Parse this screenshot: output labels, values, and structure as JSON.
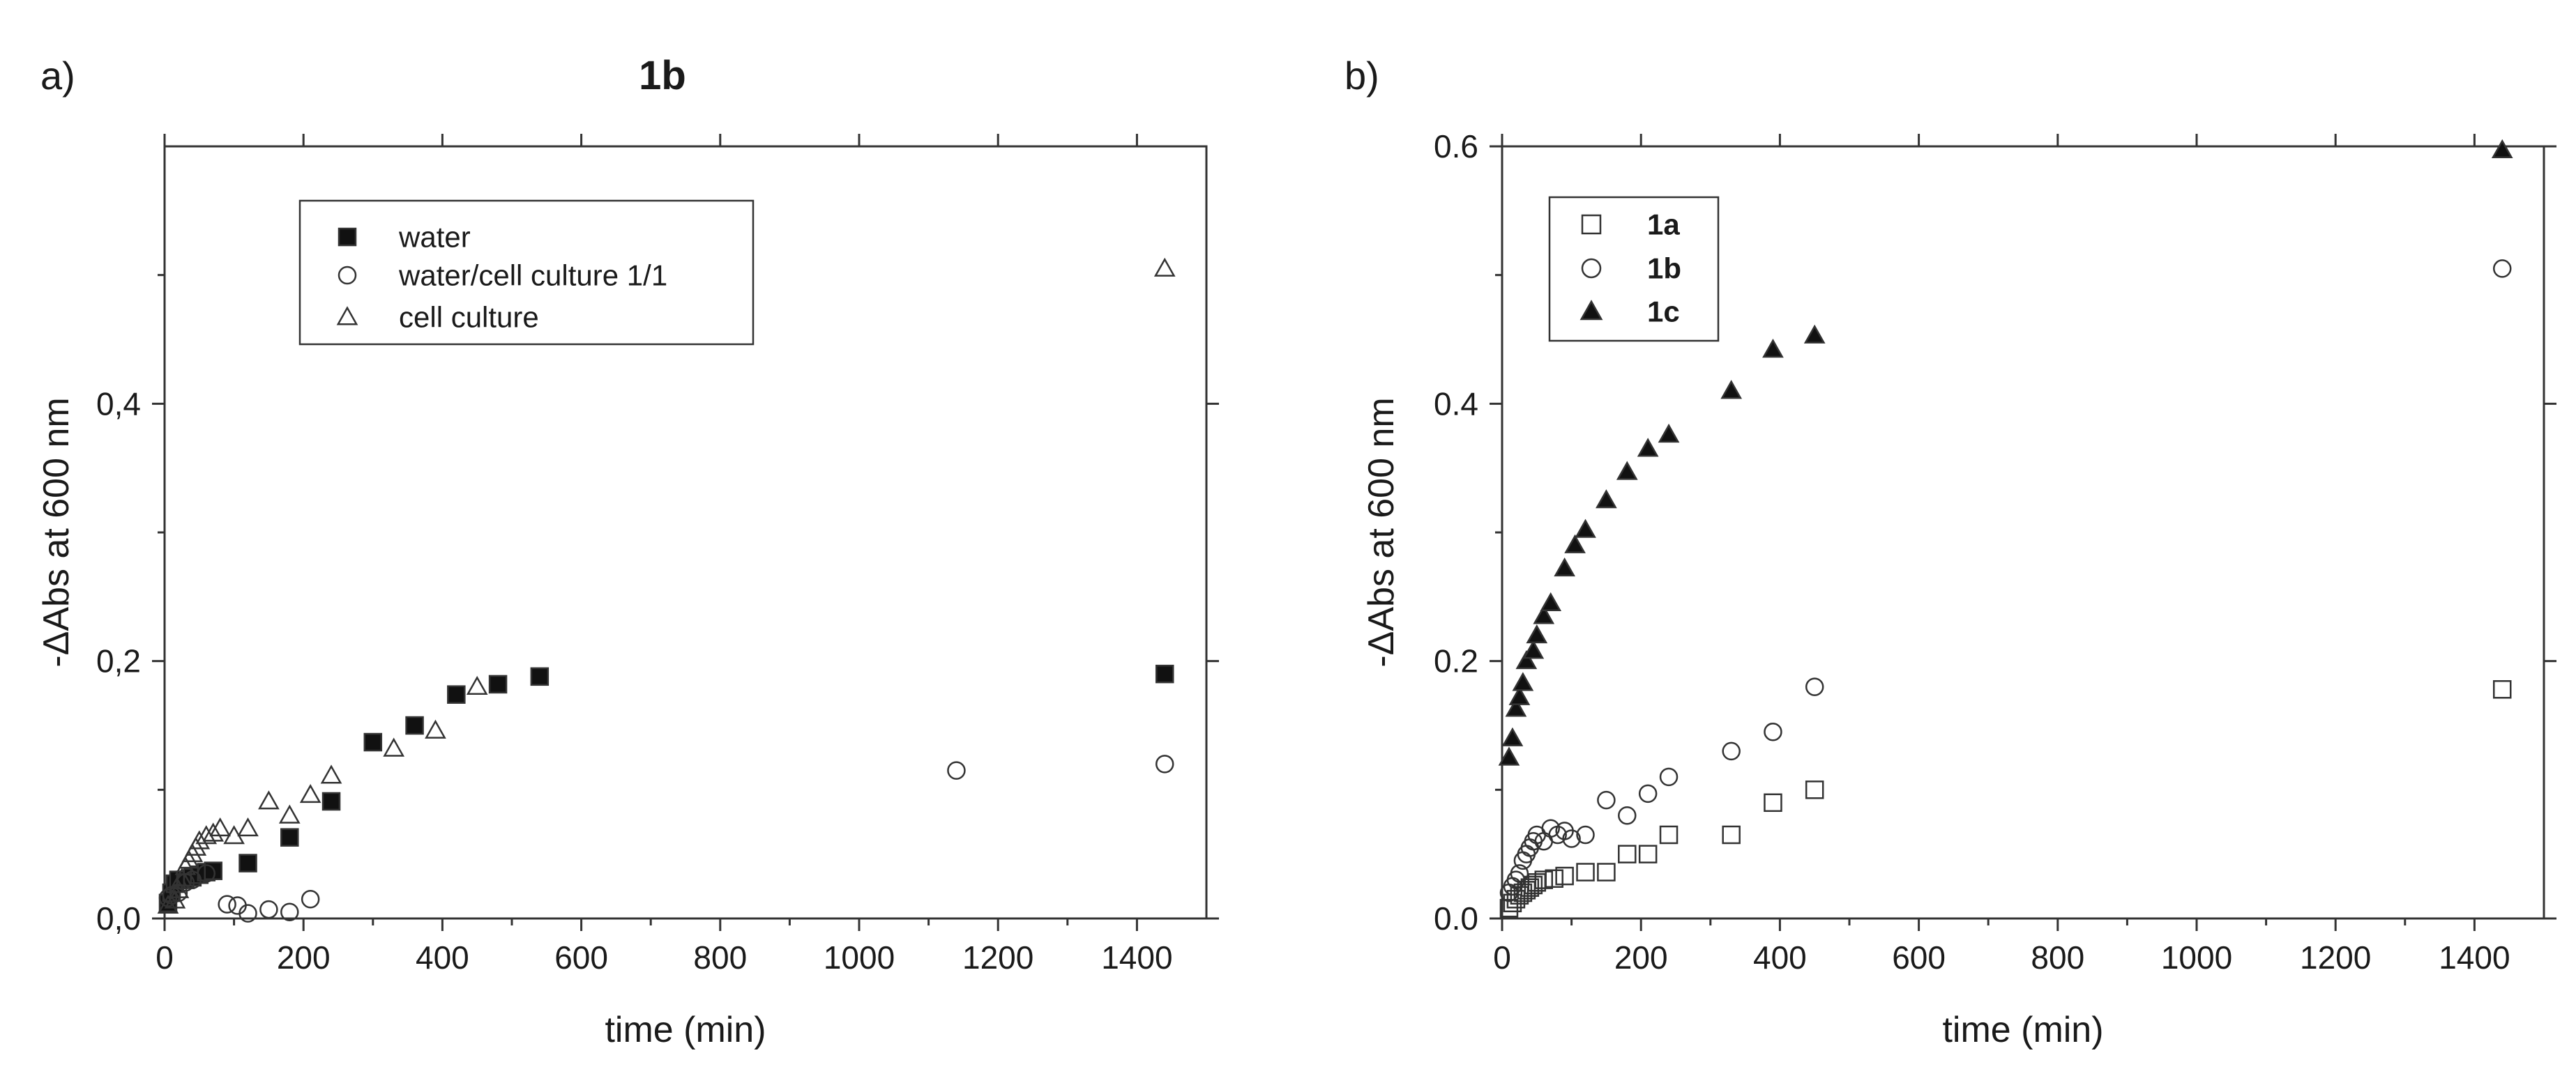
{
  "figure": {
    "panels": [
      {
        "label": "a)",
        "title": "1b"
      },
      {
        "label": "b)",
        "title": ""
      }
    ]
  },
  "chart_data": [
    {
      "type": "scatter",
      "title": "1b",
      "xlabel": "time (min)",
      "ylabel": "-ΔAbs at 600 nm",
      "xlim": [
        0,
        1500
      ],
      "ylim": [
        0,
        0.6
      ],
      "xticks": [
        0,
        200,
        400,
        600,
        800,
        1000,
        1200,
        1400
      ],
      "yticks": [
        0,
        0.2,
        0.4
      ],
      "xtick_labels": [
        "0",
        "200",
        "400",
        "600",
        "800",
        "1000",
        "1200",
        "1400"
      ],
      "ytick_labels": [
        "0,0",
        "0,2",
        "0,4"
      ],
      "legend_position": "top-left",
      "grid": false,
      "series": [
        {
          "name": "water",
          "marker": "filled-square",
          "points": [
            [
              5,
              0.012
            ],
            [
              10,
              0.02
            ],
            [
              15,
              0.027
            ],
            [
              20,
              0.03
            ],
            [
              30,
              0.03
            ],
            [
              40,
              0.032
            ],
            [
              50,
              0.034
            ],
            [
              60,
              0.036
            ],
            [
              70,
              0.037
            ],
            [
              120,
              0.043
            ],
            [
              180,
              0.063
            ],
            [
              240,
              0.091
            ],
            [
              300,
              0.137
            ],
            [
              360,
              0.15
            ],
            [
              420,
              0.174
            ],
            [
              480,
              0.182
            ],
            [
              540,
              0.188
            ],
            [
              1440,
              0.19
            ]
          ]
        },
        {
          "name": "water/cell culture 1/1",
          "marker": "open-circle",
          "points": [
            [
              5,
              0.016
            ],
            [
              10,
              0.018
            ],
            [
              20,
              0.02
            ],
            [
              30,
              0.028
            ],
            [
              40,
              0.03
            ],
            [
              60,
              0.035
            ],
            [
              90,
              0.011
            ],
            [
              105,
              0.01
            ],
            [
              120,
              0.004
            ],
            [
              150,
              0.007
            ],
            [
              180,
              0.005
            ],
            [
              210,
              0.015
            ],
            [
              1140,
              0.115
            ],
            [
              1440,
              0.12
            ]
          ]
        },
        {
          "name": "cell culture",
          "marker": "open-triangle",
          "points": [
            [
              5,
              0.01
            ],
            [
              15,
              0.014
            ],
            [
              20,
              0.022
            ],
            [
              25,
              0.031
            ],
            [
              30,
              0.04
            ],
            [
              35,
              0.045
            ],
            [
              40,
              0.05
            ],
            [
              45,
              0.055
            ],
            [
              50,
              0.06
            ],
            [
              60,
              0.064
            ],
            [
              70,
              0.066
            ],
            [
              80,
              0.07
            ],
            [
              100,
              0.064
            ],
            [
              120,
              0.07
            ],
            [
              150,
              0.091
            ],
            [
              180,
              0.08
            ],
            [
              210,
              0.096
            ],
            [
              240,
              0.111
            ],
            [
              330,
              0.132
            ],
            [
              390,
              0.146
            ],
            [
              450,
              0.18
            ],
            [
              1440,
              0.505
            ]
          ]
        }
      ]
    },
    {
      "type": "scatter",
      "title": "",
      "xlabel": "time (min)",
      "ylabel": "-ΔAbs at 600 nm",
      "xlim": [
        0,
        1500
      ],
      "ylim": [
        0,
        0.6
      ],
      "xticks": [
        0,
        200,
        400,
        600,
        800,
        1000,
        1200,
        1400
      ],
      "yticks": [
        0,
        0.2,
        0.4,
        0.6
      ],
      "xtick_labels": [
        "0",
        "200",
        "400",
        "600",
        "800",
        "1000",
        "1200",
        "1400"
      ],
      "ytick_labels": [
        "0.0",
        "0.2",
        "0.4",
        "0.6"
      ],
      "legend_position": "top-left",
      "grid": false,
      "series": [
        {
          "name": "1a",
          "marker": "open-square",
          "points": [
            [
              10,
              0.008
            ],
            [
              15,
              0.012
            ],
            [
              20,
              0.015
            ],
            [
              25,
              0.018
            ],
            [
              30,
              0.02
            ],
            [
              35,
              0.022
            ],
            [
              40,
              0.024
            ],
            [
              45,
              0.026
            ],
            [
              50,
              0.028
            ],
            [
              60,
              0.03
            ],
            [
              75,
              0.031
            ],
            [
              90,
              0.033
            ],
            [
              120,
              0.036
            ],
            [
              150,
              0.036
            ],
            [
              180,
              0.05
            ],
            [
              210,
              0.05
            ],
            [
              240,
              0.065
            ],
            [
              330,
              0.065
            ],
            [
              390,
              0.09
            ],
            [
              450,
              0.1
            ],
            [
              1440,
              0.178
            ]
          ]
        },
        {
          "name": "1b",
          "marker": "open-circle",
          "points": [
            [
              10,
              0.02
            ],
            [
              15,
              0.025
            ],
            [
              20,
              0.03
            ],
            [
              25,
              0.035
            ],
            [
              30,
              0.045
            ],
            [
              35,
              0.05
            ],
            [
              40,
              0.055
            ],
            [
              45,
              0.06
            ],
            [
              50,
              0.065
            ],
            [
              60,
              0.06
            ],
            [
              70,
              0.07
            ],
            [
              80,
              0.065
            ],
            [
              90,
              0.068
            ],
            [
              100,
              0.062
            ],
            [
              120,
              0.065
            ],
            [
              150,
              0.092
            ],
            [
              180,
              0.08
            ],
            [
              210,
              0.097
            ],
            [
              240,
              0.11
            ],
            [
              330,
              0.13
            ],
            [
              390,
              0.145
            ],
            [
              450,
              0.18
            ],
            [
              1440,
              0.505
            ]
          ]
        },
        {
          "name": "1c",
          "marker": "filled-triangle",
          "points": [
            [
              10,
              0.125
            ],
            [
              15,
              0.14
            ],
            [
              20,
              0.163
            ],
            [
              25,
              0.172
            ],
            [
              30,
              0.183
            ],
            [
              35,
              0.2
            ],
            [
              45,
              0.208
            ],
            [
              50,
              0.22
            ],
            [
              60,
              0.235
            ],
            [
              70,
              0.245
            ],
            [
              90,
              0.272
            ],
            [
              105,
              0.29
            ],
            [
              120,
              0.302
            ],
            [
              150,
              0.325
            ],
            [
              180,
              0.347
            ],
            [
              210,
              0.365
            ],
            [
              240,
              0.376
            ],
            [
              330,
              0.41
            ],
            [
              390,
              0.442
            ],
            [
              450,
              0.453
            ],
            [
              1440,
              0.597
            ]
          ]
        }
      ]
    }
  ]
}
